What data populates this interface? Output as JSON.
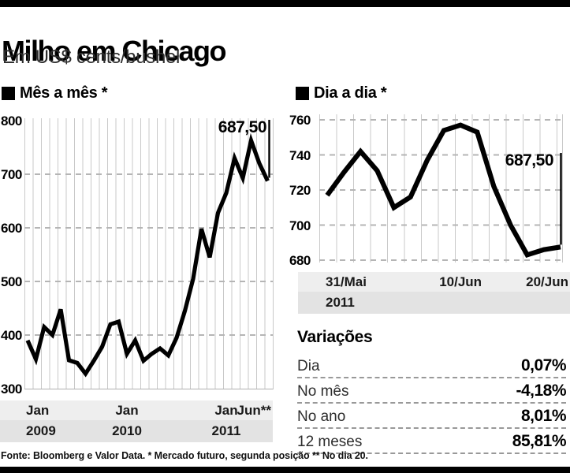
{
  "header": {
    "title": "Milho em Chicago",
    "subtitle": "Em US$ cents/bushel"
  },
  "footer": {
    "source": "Fonte: Bloomberg e Valor Data. * Mercado futuro, segunda posição ** No dia 20."
  },
  "colors": {
    "line": "#000000",
    "stripe": "#c9c9c9",
    "grid_dash": "#b5b5b5",
    "band_light": "#eeeeee",
    "band_dark": "#e3e3e3",
    "bar": "#000000"
  },
  "chart_data": [
    {
      "type": "line",
      "title": "Mês a mês *",
      "frequency": "monthly",
      "period": "Jan/2009 - Jun/2011",
      "unit": "US$ cents/bushel",
      "ylim": [
        300,
        800
      ],
      "yticks": [
        800,
        700,
        600,
        500,
        400,
        300
      ],
      "grid": "horizontal dashed + vertical stripes",
      "legend": "none",
      "annotation_label": "687,50",
      "last_value": 687.5,
      "values": [
        390,
        355,
        415,
        400,
        448,
        353,
        348,
        328,
        352,
        378,
        420,
        425,
        365,
        390,
        352,
        365,
        375,
        362,
        395,
        445,
        505,
        598,
        545,
        628,
        665,
        730,
        693,
        763,
        720,
        687.5
      ],
      "x_axis_rows": [
        [
          {
            "text": "Jan",
            "idx": 0,
            "align": "start"
          },
          {
            "text": "Jan",
            "idx": 12,
            "align": "center"
          },
          {
            "text": "Jan",
            "idx": 24,
            "align": "center"
          },
          {
            "text": "Jun**",
            "idx": 29,
            "align": "end"
          }
        ],
        [
          {
            "text": "2009",
            "idx": 0,
            "align": "start"
          },
          {
            "text": "2010",
            "idx": 12,
            "align": "center"
          },
          {
            "text": "2011",
            "idx": 24,
            "align": "center"
          }
        ]
      ]
    },
    {
      "type": "line",
      "title": "Dia a dia *",
      "frequency": "daily (trading days)",
      "period": "31/Mai - 20/Jun 2011",
      "unit": "US$ cents/bushel",
      "ylim": [
        680,
        760
      ],
      "yticks": [
        760,
        740,
        720,
        700,
        680
      ],
      "grid": "horizontal dashed + vertical stripes",
      "legend": "none",
      "annotation_label": "687,50",
      "last_value": 687.5,
      "values": [
        717,
        730,
        742,
        731,
        710,
        716,
        737,
        754,
        757,
        753,
        722,
        700,
        683,
        686,
        687.5
      ],
      "x_axis_rows": [
        [
          {
            "text": "31/Mai",
            "idx": 0,
            "align": "start"
          },
          {
            "text": "10/Jun",
            "idx": 8,
            "align": "center"
          },
          {
            "text": "20/Jun",
            "idx": 14,
            "align": "end"
          }
        ],
        [
          {
            "text": "2011",
            "idx": 0,
            "align": "start"
          }
        ]
      ]
    }
  ],
  "variations": {
    "title": "Variações",
    "rows": [
      {
        "label": "Dia",
        "value": "0,07%"
      },
      {
        "label": "No mês",
        "value": "-4,18%"
      },
      {
        "label": "No ano",
        "value": "8,01%"
      },
      {
        "label": "12 meses",
        "value": "85,81%"
      }
    ]
  }
}
